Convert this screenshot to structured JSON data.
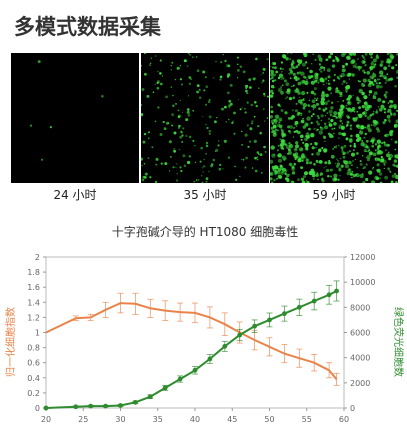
{
  "page_title": "多模式数据采集",
  "colors": {
    "accent_orange": "#e8844a",
    "accent_green": "#2e8b2e",
    "cell_green": "#3ddc3d"
  },
  "panels": [
    {
      "label": "24 小时",
      "cell_count": 5
    },
    {
      "label": "35 小时",
      "cell_count": 260
    },
    {
      "label": "59 小时",
      "cell_count": 900
    }
  ],
  "chart_data": {
    "type": "line",
    "title": "十字孢碱介导的 HT1080 细胞毒性",
    "x_range": [
      20,
      60
    ],
    "x_ticks": [
      "20",
      "25",
      "30",
      "35",
      "40",
      "45",
      "50",
      "55",
      "60"
    ],
    "ylabel_left": "归一化细胞指数",
    "ylabel_right": "绿色荧光细胞数",
    "ylim_left": [
      0,
      2
    ],
    "ylim_right": [
      0,
      12000
    ],
    "y_ticks_left": [
      "0",
      "0.2",
      "0.4",
      "0.6",
      "0.8",
      "1",
      "1.2",
      "1.4",
      "1.6",
      "1.8",
      "2"
    ],
    "y_ticks_right": [
      "0",
      "2000",
      "4000",
      "6000",
      "8000",
      "10000",
      "12000"
    ],
    "grid": false,
    "series": [
      {
        "name": "",
        "axis": "left",
        "color": "#e8844a",
        "x": [
          20,
          24,
          26,
          28,
          30,
          32,
          34,
          36,
          38,
          40,
          42,
          44,
          46,
          48,
          50,
          52,
          54,
          56,
          58,
          59
        ],
        "y": [
          1.0,
          1.19,
          1.2,
          1.3,
          1.39,
          1.38,
          1.32,
          1.29,
          1.27,
          1.26,
          1.2,
          1.11,
          1.0,
          0.9,
          0.81,
          0.72,
          0.66,
          0.6,
          0.5,
          0.38
        ],
        "err": [
          0,
          0.03,
          0.04,
          0.1,
          0.13,
          0.14,
          0.12,
          0.13,
          0.12,
          0.13,
          0.14,
          0.15,
          0.14,
          0.13,
          0.12,
          0.12,
          0.12,
          0.11,
          0.1,
          0.08
        ],
        "markers": false
      },
      {
        "name": "",
        "axis": "right",
        "color": "#2e8b2e",
        "x": [
          20,
          24,
          26,
          28,
          30,
          32,
          34,
          36,
          38,
          40,
          42,
          44,
          46,
          48,
          50,
          52,
          54,
          56,
          58,
          59
        ],
        "y": [
          0,
          100,
          150,
          150,
          200,
          450,
          900,
          1600,
          2300,
          3000,
          3900,
          4900,
          5800,
          6500,
          7000,
          7500,
          8000,
          8500,
          9000,
          9300
        ],
        "err": [
          0,
          50,
          60,
          60,
          80,
          100,
          150,
          200,
          250,
          300,
          350,
          400,
          450,
          500,
          550,
          600,
          650,
          700,
          750,
          800
        ],
        "markers": true
      }
    ]
  }
}
